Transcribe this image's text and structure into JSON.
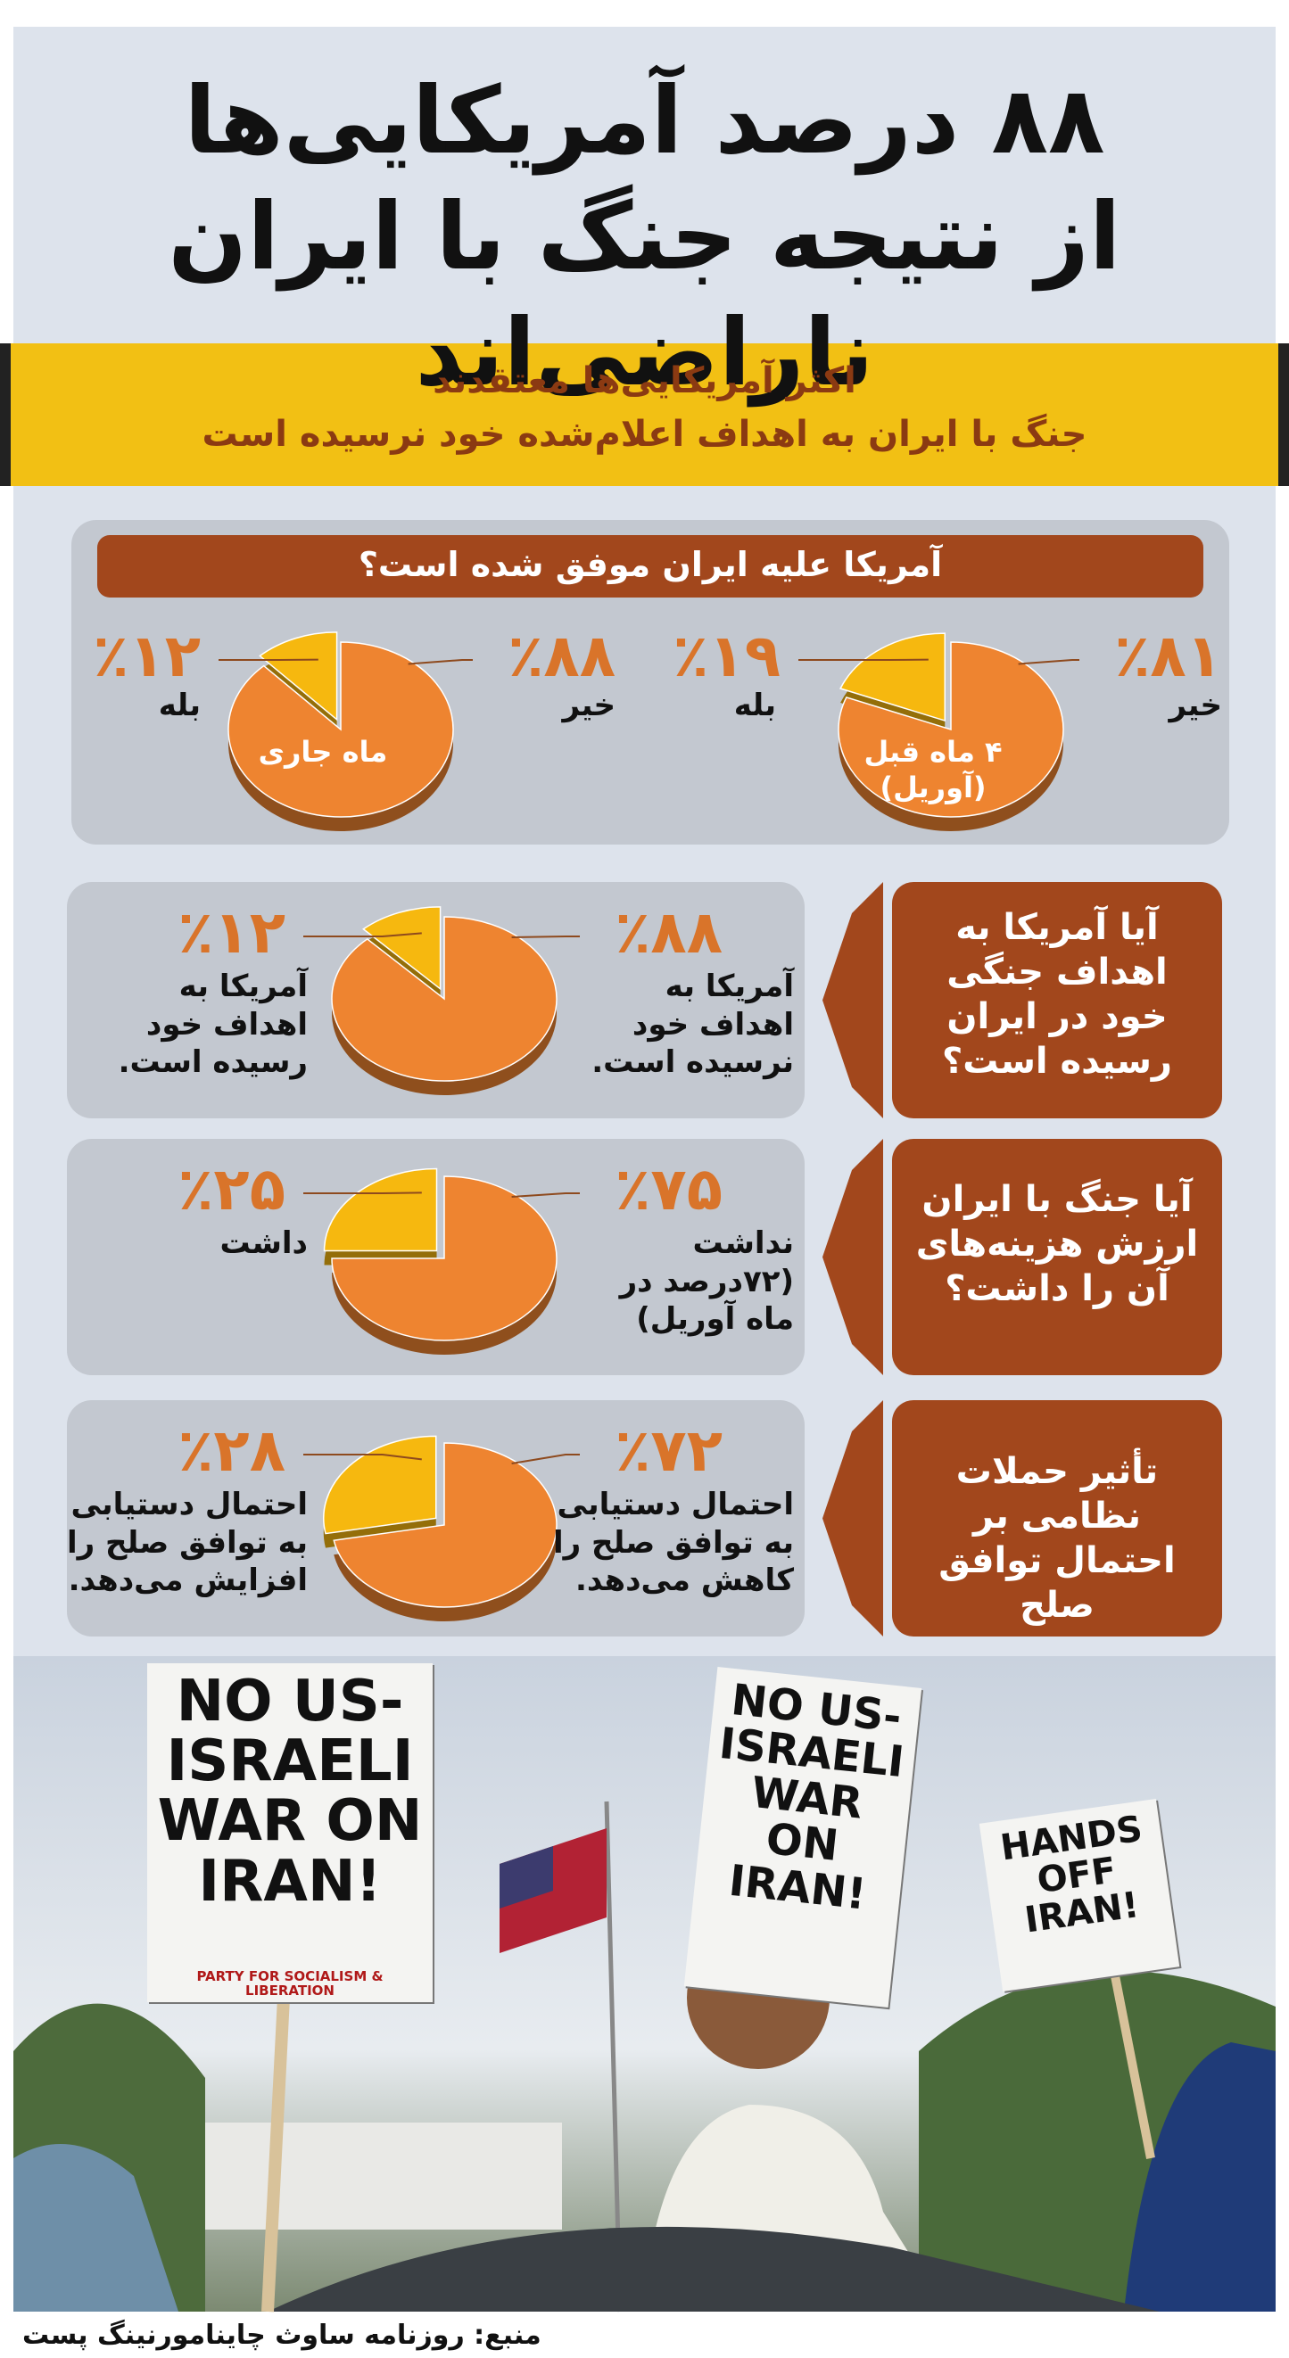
{
  "header": {
    "title": [
      "۸۸ درصد آمریکایی‌ها",
      "از نتیجه جنگ با ایران ناراضی‌اند"
    ]
  },
  "subtitle": [
    "اکثر آمریکایی‌ها معتقدند",
    "جنگ با ایران به اهداف اعلام‌شده خود نرسیده است"
  ],
  "chart_data": [
    {
      "type": "pie",
      "title": "آمریکا علیه ایران موفق شده است؟",
      "label": "۴ ماه قبل (آوریل)",
      "categories": [
        "خیر",
        "بله"
      ],
      "values": [
        81,
        19
      ],
      "value_labels": [
        "٪۸۱",
        "٪۱۹"
      ],
      "colors": [
        "#ee8430",
        "#f6b80f"
      ]
    },
    {
      "type": "pie",
      "label": "ماه جاری",
      "categories": [
        "خیر",
        "بله"
      ],
      "values": [
        88,
        12
      ],
      "value_labels": [
        "٪۸۸",
        "٪۱۲"
      ],
      "colors": [
        "#ee8430",
        "#f6b80f"
      ]
    },
    {
      "type": "pie",
      "title": "آیا آمریکا به اهداف جنگی خود در ایران رسیده است؟",
      "categories": [
        "آمریکا به اهداف خود نرسیده است.",
        "آمریکا به اهداف خود رسیده است."
      ],
      "values": [
        88,
        12
      ],
      "value_labels": [
        "٪۸۸",
        "٪۱۲"
      ],
      "colors": [
        "#ee8430",
        "#f6b80f"
      ]
    },
    {
      "type": "pie",
      "title": "آیا جنگ با ایران ارزش هزینه‌های آن را داشت؟",
      "categories": [
        "نداشت (۷۲درصد در ماه آوریل)",
        "داشت"
      ],
      "values": [
        75,
        25
      ],
      "value_labels": [
        "٪۷۵",
        "٪۲۵"
      ],
      "colors": [
        "#ee8430",
        "#f6b80f"
      ]
    },
    {
      "type": "pie",
      "title": "تأثیر حملات نظامی بر احتمال توافق صلح",
      "categories": [
        "احتمال دستیابی به توافق صلح را کاهش می‌دهد.",
        "احتمال دستیابی به توافق صلح را افزایش می‌دهد."
      ],
      "values": [
        72,
        28
      ],
      "value_labels": [
        "٪۷۲",
        "٪۲۸"
      ],
      "colors": [
        "#ee8430",
        "#f6b80f"
      ]
    }
  ],
  "photo": {
    "signs": [
      "NO US-ISRAELI WAR ON IRAN!",
      "PARTY FOR SOCIALISM & LIBERATION",
      "NO US-ISRAELI WAR ON IRAN!",
      "HANDS OFF IRAN!"
    ]
  },
  "source": "منبع: روزنامه ساوث چاینامورنینگ پست"
}
